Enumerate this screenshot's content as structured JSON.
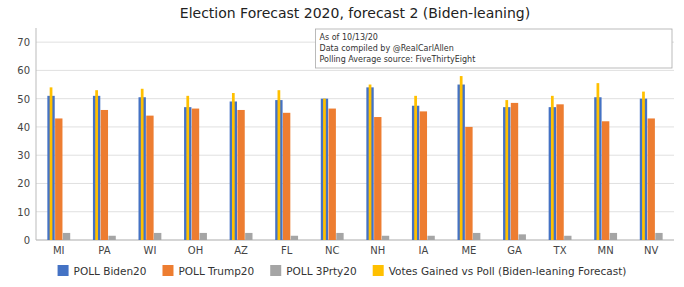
{
  "chart_data": {
    "type": "bar",
    "title": "Election Forecast 2020, forecast 2 (Biden-leaning)",
    "annotation": "As of 10/13/20\nData compiled by @RealCarlAllen\nPolling Average source: FiveThirtyEight",
    "categories": [
      "MI",
      "PA",
      "WI",
      "OH",
      "AZ",
      "FL",
      "NC",
      "NH",
      "IA",
      "ME",
      "GA",
      "TX",
      "MN",
      "NV"
    ],
    "series": [
      {
        "name": "POLL Biden20",
        "color": "#4472C4",
        "values": [
          51.0,
          51.0,
          50.5,
          47.0,
          49.0,
          49.5,
          50.0,
          54.0,
          47.5,
          55.0,
          47.0,
          47.0,
          50.5,
          50.0
        ]
      },
      {
        "name": "POLL Trump20",
        "color": "#ED7D31",
        "values": [
          43.0,
          46.0,
          44.0,
          46.5,
          46.0,
          45.0,
          46.5,
          43.5,
          45.5,
          40.0,
          48.5,
          48.0,
          42.0,
          43.0
        ]
      },
      {
        "name": "POLL 3Prty20",
        "color": "#A5A5A5",
        "values": [
          2.5,
          1.5,
          2.5,
          2.5,
          2.5,
          1.5,
          2.5,
          1.5,
          1.5,
          2.5,
          2.0,
          1.5,
          2.5,
          2.5
        ]
      },
      {
        "name": "Votes Gained vs Poll (Biden-leaning Forecast)",
        "color": "#FFC000",
        "values": [
          54.0,
          53.0,
          53.5,
          51.0,
          52.0,
          53.0,
          50.0,
          55.0,
          51.0,
          58.0,
          49.5,
          51.0,
          55.5,
          52.5
        ]
      }
    ],
    "ylim": [
      0,
      75
    ],
    "yticks": [
      0,
      10,
      20,
      30,
      40,
      50,
      60,
      70
    ],
    "grid": true,
    "legend": "bottom"
  }
}
